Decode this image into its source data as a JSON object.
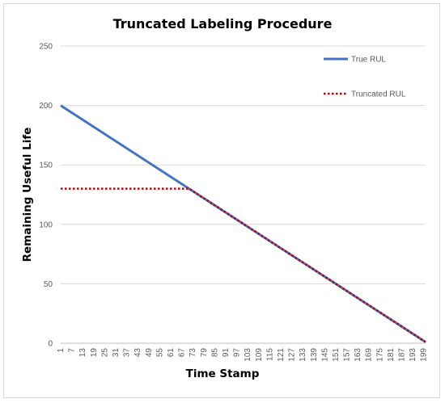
{
  "chart_data": {
    "type": "line",
    "title": "Truncated Labeling Procedure",
    "xlabel": "Time Stamp",
    "ylabel": "Remaining Useful Life",
    "ylim": [
      0,
      250
    ],
    "yticks": [
      0,
      50,
      100,
      150,
      200,
      250
    ],
    "xlim": [
      1,
      200
    ],
    "xtick_labels": [
      "1",
      "7",
      "13",
      "19",
      "25",
      "31",
      "37",
      "43",
      "49",
      "55",
      "61",
      "67",
      "73",
      "79",
      "85",
      "91",
      "97",
      "103",
      "109",
      "115",
      "121",
      "127",
      "133",
      "139",
      "145",
      "151",
      "157",
      "163",
      "169",
      "175",
      "181",
      "187",
      "193",
      "199"
    ],
    "grid": true,
    "legend_placement": "top-right",
    "series": [
      {
        "name": "True RUL",
        "color": "#4472c4",
        "style": "solid",
        "points": [
          [
            1,
            200
          ],
          [
            200,
            1
          ]
        ]
      },
      {
        "name": "Truncated RUL",
        "color": "#c00000",
        "style": "dotted",
        "points": [
          [
            1,
            130
          ],
          [
            71,
            130
          ],
          [
            200,
            1
          ]
        ]
      }
    ]
  }
}
